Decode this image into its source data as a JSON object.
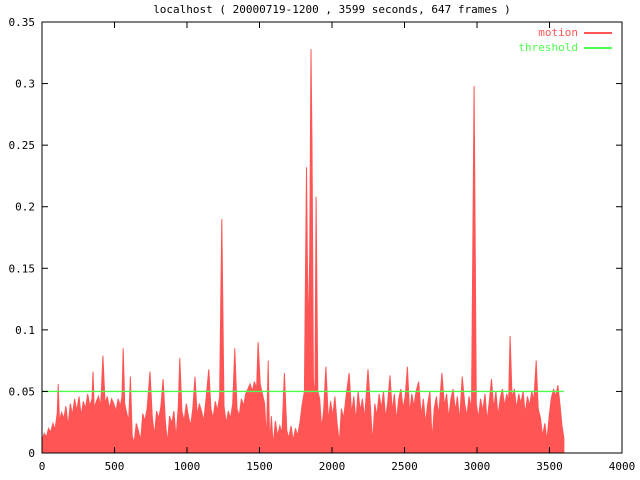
{
  "chart_data": {
    "type": "area",
    "title": "localhost ( 20000719-1200 , 3599 seconds, 647 frames )",
    "xlabel": "",
    "ylabel": "",
    "xlim": [
      0,
      4000
    ],
    "ylim": [
      0,
      0.35
    ],
    "xticks": [
      0,
      500,
      1000,
      1500,
      2000,
      2500,
      3000,
      3500,
      4000
    ],
    "yticks": [
      0,
      0.05,
      0.1,
      0.15,
      0.2,
      0.25,
      0.3,
      0.35
    ],
    "ytick_labels": [
      "0",
      "0.05",
      "0.1",
      "0.15",
      "0.2",
      "0.25",
      "0.3",
      "0.35"
    ],
    "grid": false,
    "legend_position": "top-right-inside",
    "colors": {
      "motion": "#ff5555",
      "threshold": "#4dff4d",
      "axis": "#000000",
      "background": "#ffffff"
    },
    "series": [
      {
        "name": "motion",
        "style": "filled-spikes",
        "color": "#ff5555",
        "points": [
          [
            0,
            0.01
          ],
          [
            15,
            0.016
          ],
          [
            30,
            0.013
          ],
          [
            45,
            0.02
          ],
          [
            60,
            0.017
          ],
          [
            75,
            0.024
          ],
          [
            90,
            0.019
          ],
          [
            105,
            0.032
          ],
          [
            112,
            0.056
          ],
          [
            120,
            0.026
          ],
          [
            135,
            0.033
          ],
          [
            150,
            0.028
          ],
          [
            165,
            0.038
          ],
          [
            180,
            0.022
          ],
          [
            195,
            0.04
          ],
          [
            210,
            0.031
          ],
          [
            225,
            0.044
          ],
          [
            240,
            0.034
          ],
          [
            255,
            0.046
          ],
          [
            270,
            0.03
          ],
          [
            285,
            0.042
          ],
          [
            300,
            0.036
          ],
          [
            315,
            0.048
          ],
          [
            330,
            0.038
          ],
          [
            345,
            0.044
          ],
          [
            352,
            0.066
          ],
          [
            360,
            0.036
          ],
          [
            375,
            0.042
          ],
          [
            390,
            0.046
          ],
          [
            405,
            0.038
          ],
          [
            420,
            0.079
          ],
          [
            435,
            0.04
          ],
          [
            450,
            0.046
          ],
          [
            465,
            0.036
          ],
          [
            480,
            0.044
          ],
          [
            495,
            0.04
          ],
          [
            510,
            0.034
          ],
          [
            525,
            0.044
          ],
          [
            540,
            0.038
          ],
          [
            552,
            0.046
          ],
          [
            560,
            0.085
          ],
          [
            570,
            0.04
          ],
          [
            585,
            0.032
          ],
          [
            598,
            0.026
          ],
          [
            610,
            0.062
          ],
          [
            622,
            0.014
          ],
          [
            635,
            0.008
          ],
          [
            650,
            0.024
          ],
          [
            665,
            0.018
          ],
          [
            680,
            0.01
          ],
          [
            695,
            0.032
          ],
          [
            710,
            0.026
          ],
          [
            725,
            0.036
          ],
          [
            745,
            0.066
          ],
          [
            760,
            0.03
          ],
          [
            775,
            0.014
          ],
          [
            790,
            0.034
          ],
          [
            805,
            0.028
          ],
          [
            820,
            0.038
          ],
          [
            835,
            0.06
          ],
          [
            850,
            0.026
          ],
          [
            865,
            0.008
          ],
          [
            880,
            0.03
          ],
          [
            895,
            0.024
          ],
          [
            910,
            0.034
          ],
          [
            925,
            0.012
          ],
          [
            940,
            0.038
          ],
          [
            950,
            0.077
          ],
          [
            965,
            0.034
          ],
          [
            980,
            0.026
          ],
          [
            995,
            0.04
          ],
          [
            1010,
            0.03
          ],
          [
            1025,
            0.022
          ],
          [
            1040,
            0.036
          ],
          [
            1055,
            0.062
          ],
          [
            1070,
            0.03
          ],
          [
            1085,
            0.04
          ],
          [
            1100,
            0.034
          ],
          [
            1115,
            0.026
          ],
          [
            1130,
            0.042
          ],
          [
            1150,
            0.068
          ],
          [
            1165,
            0.036
          ],
          [
            1180,
            0.028
          ],
          [
            1195,
            0.042
          ],
          [
            1210,
            0.034
          ],
          [
            1225,
            0.046
          ],
          [
            1240,
            0.19
          ],
          [
            1255,
            0.038
          ],
          [
            1270,
            0.024
          ],
          [
            1285,
            0.034
          ],
          [
            1300,
            0.028
          ],
          [
            1315,
            0.04
          ],
          [
            1330,
            0.085
          ],
          [
            1345,
            0.036
          ],
          [
            1360,
            0.03
          ],
          [
            1375,
            0.044
          ],
          [
            1390,
            0.038
          ],
          [
            1405,
            0.048
          ],
          [
            1420,
            0.052
          ],
          [
            1435,
            0.056
          ],
          [
            1450,
            0.05
          ],
          [
            1465,
            0.058
          ],
          [
            1480,
            0.052
          ],
          [
            1490,
            0.09
          ],
          [
            1505,
            0.056
          ],
          [
            1520,
            0.048
          ],
          [
            1535,
            0.04
          ],
          [
            1548,
            0.01
          ],
          [
            1560,
            0.075
          ],
          [
            1570,
            0.008
          ],
          [
            1582,
            0.03
          ],
          [
            1594,
            0.006
          ],
          [
            1610,
            0.026
          ],
          [
            1625,
            0.014
          ],
          [
            1640,
            0.022
          ],
          [
            1655,
            0.016
          ],
          [
            1672,
            0.065
          ],
          [
            1688,
            0.018
          ],
          [
            1702,
            0.012
          ],
          [
            1718,
            0.022
          ],
          [
            1732,
            0.01
          ],
          [
            1748,
            0.02
          ],
          [
            1762,
            0.014
          ],
          [
            1778,
            0.024
          ],
          [
            1795,
            0.04
          ],
          [
            1810,
            0.05
          ],
          [
            1824,
            0.232
          ],
          [
            1835,
            0.09
          ],
          [
            1846,
            0.16
          ],
          [
            1855,
            0.328
          ],
          [
            1862,
            0.25
          ],
          [
            1872,
            0.06
          ],
          [
            1882,
            0.04
          ],
          [
            1890,
            0.208
          ],
          [
            1902,
            0.05
          ],
          [
            1915,
            0.044
          ],
          [
            1928,
            0.02
          ],
          [
            1942,
            0.034
          ],
          [
            1958,
            0.07
          ],
          [
            1975,
            0.026
          ],
          [
            1990,
            0.042
          ],
          [
            2005,
            0.03
          ],
          [
            2020,
            0.046
          ],
          [
            2035,
            0.024
          ],
          [
            2050,
            0.008
          ],
          [
            2065,
            0.036
          ],
          [
            2080,
            0.028
          ],
          [
            2095,
            0.044
          ],
          [
            2118,
            0.065
          ],
          [
            2135,
            0.032
          ],
          [
            2150,
            0.046
          ],
          [
            2165,
            0.026
          ],
          [
            2180,
            0.05
          ],
          [
            2195,
            0.034
          ],
          [
            2210,
            0.044
          ],
          [
            2225,
            0.028
          ],
          [
            2248,
            0.068
          ],
          [
            2265,
            0.038
          ],
          [
            2280,
            0.008
          ],
          [
            2295,
            0.04
          ],
          [
            2310,
            0.03
          ],
          [
            2325,
            0.048
          ],
          [
            2340,
            0.036
          ],
          [
            2355,
            0.05
          ],
          [
            2370,
            0.028
          ],
          [
            2385,
            0.042
          ],
          [
            2400,
            0.063
          ],
          [
            2415,
            0.034
          ],
          [
            2430,
            0.048
          ],
          [
            2445,
            0.026
          ],
          [
            2460,
            0.044
          ],
          [
            2475,
            0.052
          ],
          [
            2490,
            0.036
          ],
          [
            2505,
            0.046
          ],
          [
            2520,
            0.07
          ],
          [
            2535,
            0.032
          ],
          [
            2550,
            0.048
          ],
          [
            2565,
            0.038
          ],
          [
            2580,
            0.05
          ],
          [
            2598,
            0.058
          ],
          [
            2615,
            0.03
          ],
          [
            2630,
            0.044
          ],
          [
            2645,
            0.024
          ],
          [
            2660,
            0.04
          ],
          [
            2675,
            0.05
          ],
          [
            2690,
            0.01
          ],
          [
            2705,
            0.036
          ],
          [
            2720,
            0.046
          ],
          [
            2735,
            0.03
          ],
          [
            2758,
            0.065
          ],
          [
            2775,
            0.038
          ],
          [
            2790,
            0.048
          ],
          [
            2805,
            0.028
          ],
          [
            2820,
            0.044
          ],
          [
            2835,
            0.052
          ],
          [
            2850,
            0.034
          ],
          [
            2865,
            0.046
          ],
          [
            2880,
            0.026
          ],
          [
            2898,
            0.062
          ],
          [
            2915,
            0.04
          ],
          [
            2930,
            0.03
          ],
          [
            2945,
            0.046
          ],
          [
            2962,
            0.036
          ],
          [
            2980,
            0.298
          ],
          [
            2995,
            0.04
          ],
          [
            3010,
            0.028
          ],
          [
            3025,
            0.044
          ],
          [
            3040,
            0.034
          ],
          [
            3055,
            0.048
          ],
          [
            3070,
            0.026
          ],
          [
            3085,
            0.042
          ],
          [
            3100,
            0.06
          ],
          [
            3115,
            0.036
          ],
          [
            3130,
            0.05
          ],
          [
            3145,
            0.03
          ],
          [
            3160,
            0.044
          ],
          [
            3175,
            0.052
          ],
          [
            3190,
            0.038
          ],
          [
            3205,
            0.048
          ],
          [
            3218,
            0.042
          ],
          [
            3228,
            0.095
          ],
          [
            3242,
            0.044
          ],
          [
            3258,
            0.052
          ],
          [
            3272,
            0.036
          ],
          [
            3288,
            0.048
          ],
          [
            3302,
            0.04
          ],
          [
            3318,
            0.05
          ],
          [
            3332,
            0.032
          ],
          [
            3348,
            0.046
          ],
          [
            3362,
            0.038
          ],
          [
            3378,
            0.05
          ],
          [
            3392,
            0.042
          ],
          [
            3408,
            0.075
          ],
          [
            3422,
            0.036
          ],
          [
            3438,
            0.028
          ],
          [
            3452,
            0.014
          ],
          [
            3468,
            0.024
          ],
          [
            3482,
            0.01
          ],
          [
            3498,
            0.03
          ],
          [
            3512,
            0.044
          ],
          [
            3528,
            0.052
          ],
          [
            3542,
            0.046
          ],
          [
            3558,
            0.055
          ],
          [
            3572,
            0.04
          ],
          [
            3586,
            0.022
          ],
          [
            3599,
            0.012
          ]
        ]
      },
      {
        "name": "threshold",
        "style": "hline",
        "color": "#4dff4d",
        "value": 0.05,
        "x_start": 0,
        "x_end": 3599
      }
    ]
  }
}
